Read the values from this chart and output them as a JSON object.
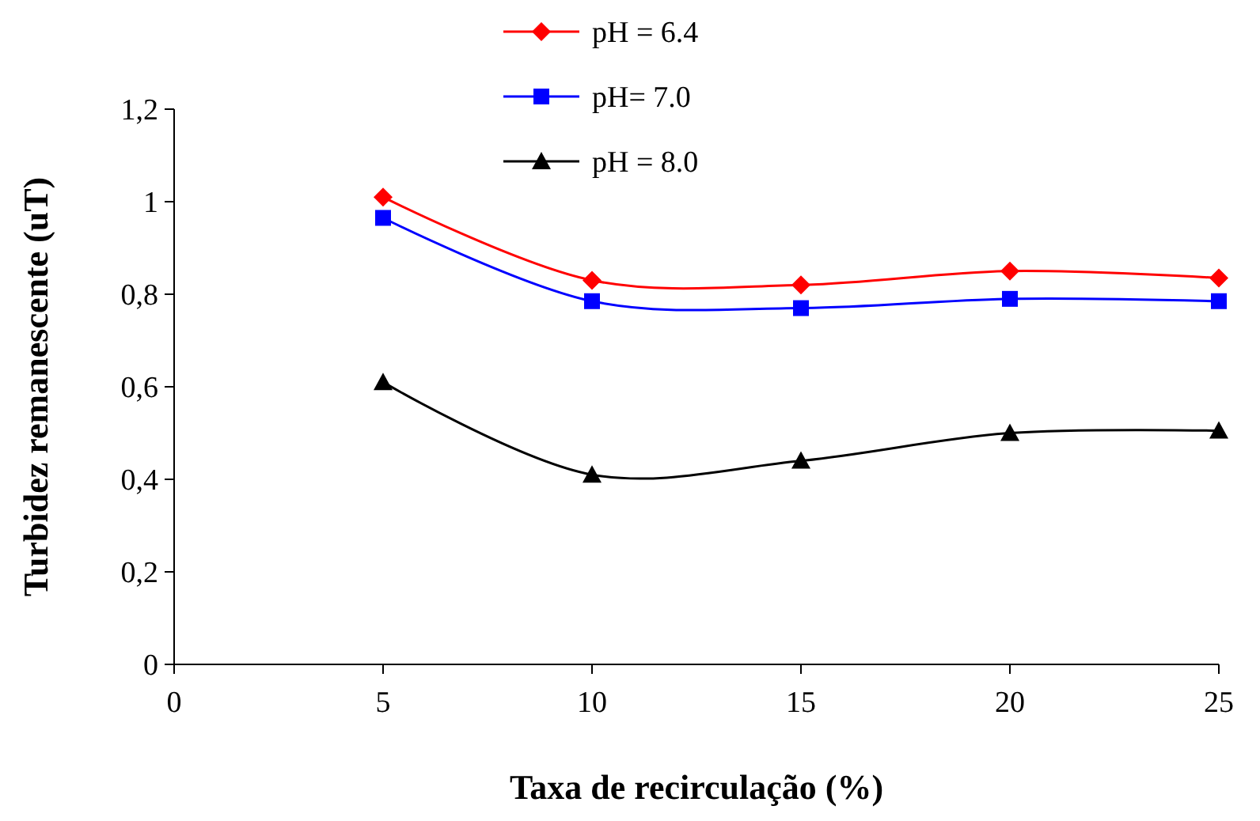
{
  "chart_data": {
    "type": "line",
    "xlabel": "Taxa de recirculação (%)",
    "ylabel": "Turbidez remanescente (uT)",
    "xlim": [
      0,
      25
    ],
    "xticks": [
      0,
      5,
      10,
      15,
      20,
      25
    ],
    "ylim": [
      0,
      1.2
    ],
    "yticks": [
      0,
      {
        "value": 0.2,
        "label": "0,2"
      },
      {
        "value": 0.4,
        "label": "0,4"
      },
      {
        "value": 0.6,
        "label": "0,6"
      },
      {
        "value": 0.8,
        "label": "0,8"
      },
      1,
      {
        "value": 1.2,
        "label": "1,2"
      }
    ],
    "x": [
      5,
      10,
      15,
      20,
      25
    ],
    "series": [
      {
        "name": "pH = 6.4",
        "color": "#ff0000",
        "marker": "diamond",
        "values": [
          1.01,
          0.83,
          0.82,
          0.85,
          0.835
        ]
      },
      {
        "name": "pH= 7.0",
        "color": "#0000ff",
        "marker": "square",
        "values": [
          0.965,
          0.785,
          0.77,
          0.79,
          0.785
        ]
      },
      {
        "name": "pH = 8.0",
        "color": "#000000",
        "marker": "triangle",
        "values": [
          0.61,
          0.41,
          0.44,
          0.5,
          0.505
        ]
      }
    ],
    "legend": "top",
    "grid": false,
    "line_style": "solid"
  }
}
